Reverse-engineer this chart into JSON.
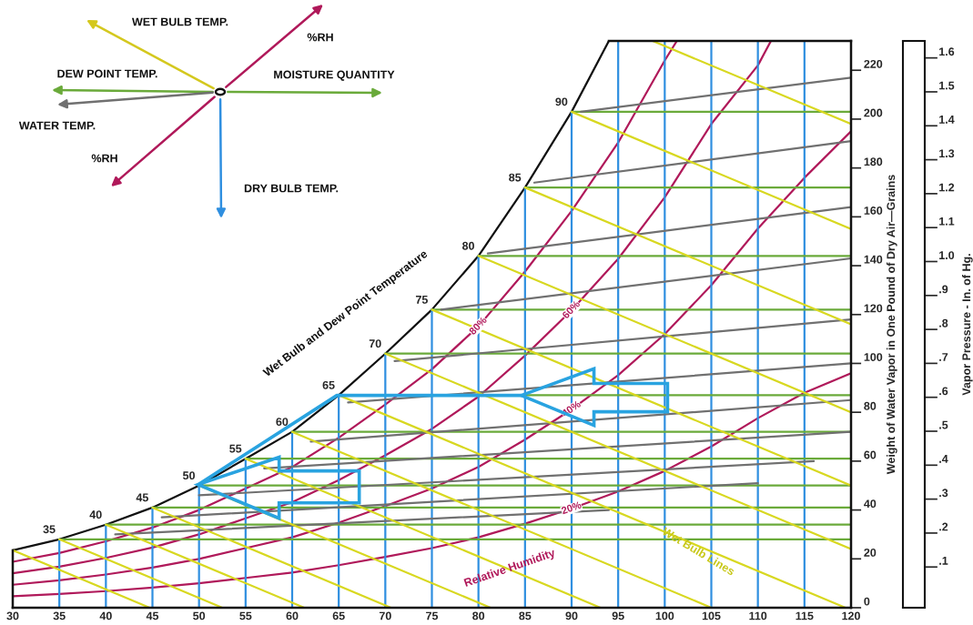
{
  "chart_data": {
    "type": "line",
    "xlim": [
      30,
      120
    ],
    "xticks": [
      30,
      35,
      40,
      45,
      50,
      55,
      60,
      65,
      70,
      75,
      80,
      85,
      90,
      95,
      100,
      105,
      110,
      115,
      120
    ],
    "ylim": [
      0,
      232
    ],
    "yticks": [
      0,
      20,
      40,
      60,
      80,
      100,
      120,
      140,
      160,
      180,
      200,
      220
    ],
    "ylabel": "Weight of Water Vapor in One Pound of Dry Air—Grains",
    "y2label": "Vapor Pressure - In. of Hg.",
    "y2lim": [
      -0.02,
      1.65
    ],
    "y2ticks": [
      {
        "value": 0.1,
        "label": ".1"
      },
      {
        "value": 0.2,
        "label": ".2"
      },
      {
        "value": 0.3,
        "label": ".3"
      },
      {
        "value": 0.4,
        "label": ".4"
      },
      {
        "value": 0.5,
        "label": ".5"
      },
      {
        "value": 0.6,
        "label": ".6"
      },
      {
        "value": 0.7,
        "label": ".7"
      },
      {
        "value": 0.8,
        "label": ".8"
      },
      {
        "value": 0.9,
        "label": ".9"
      },
      {
        "value": 1.0,
        "label": "1.0"
      },
      {
        "value": 1.1,
        "label": "1.1"
      },
      {
        "value": 1.2,
        "label": "1.2"
      },
      {
        "value": 1.3,
        "label": "1.3"
      },
      {
        "value": 1.4,
        "label": "1.4"
      },
      {
        "value": 1.5,
        "label": "1.5"
      },
      {
        "value": 1.6,
        "label": "1.6"
      }
    ],
    "grid": false,
    "series": [
      {
        "color": "#111111",
        "x": [
          30,
          35,
          40,
          45,
          50,
          55,
          60,
          65,
          70,
          75,
          80,
          85,
          90,
          94
        ],
        "values": [
          23.5,
          28,
          34,
          41,
          50,
          61,
          72,
          87,
          104,
          122,
          144,
          172,
          203,
          232
        ]
      },
      {
        "name": "80%",
        "color": "#b0195a",
        "x": [
          30,
          35,
          40,
          45,
          50,
          55,
          60,
          65,
          70,
          75,
          80,
          85,
          90,
          95,
          100,
          101.3
        ],
        "values": [
          18.8,
          22.4,
          27.2,
          32.8,
          40,
          48.8,
          57.6,
          69.6,
          83.2,
          97.6,
          115.2,
          137.6,
          162.4,
          190.4,
          224,
          232
        ]
      },
      {
        "name": "60%",
        "color": "#b0195a",
        "x": [
          30,
          35,
          40,
          45,
          50,
          55,
          60,
          65,
          70,
          75,
          80,
          85,
          90,
          95,
          100,
          105,
          110,
          111.4
        ],
        "values": [
          14.1,
          16.8,
          20.4,
          24.6,
          30,
          36.6,
          43.2,
          52.2,
          62.4,
          73.2,
          86.4,
          103.2,
          121.8,
          142.8,
          168,
          198,
          222,
          232
        ]
      },
      {
        "name": "40%",
        "color": "#b0195a",
        "x": [
          30,
          35,
          40,
          45,
          50,
          55,
          60,
          65,
          70,
          75,
          80,
          85,
          90,
          95,
          100,
          105,
          110,
          115,
          120
        ],
        "values": [
          9.4,
          11.2,
          13.6,
          16.4,
          20,
          24.4,
          28.8,
          34.8,
          41.6,
          48.8,
          57.6,
          68.8,
          81.2,
          95.2,
          112,
          132,
          155.2,
          176,
          195
        ]
      },
      {
        "name": "20%",
        "color": "#b0195a",
        "x": [
          30,
          35,
          40,
          45,
          50,
          55,
          60,
          65,
          70,
          75,
          80,
          85,
          90,
          95,
          100,
          105,
          110,
          115,
          120
        ],
        "values": [
          4.7,
          5.6,
          6.8,
          8.2,
          10,
          12.2,
          14.4,
          17.4,
          20.8,
          24.4,
          28.8,
          34.4,
          40.6,
          47.6,
          56,
          66,
          77.6,
          88,
          96
        ]
      },
      {
        "color": "#2f8fe0",
        "x": [
          35,
          35
        ],
        "values": [
          0,
          28
        ]
      },
      {
        "color": "#2f8fe0",
        "x": [
          40,
          40
        ],
        "values": [
          0,
          34
        ]
      },
      {
        "color": "#2f8fe0",
        "x": [
          45,
          45
        ],
        "values": [
          0,
          41
        ]
      },
      {
        "color": "#2f8fe0",
        "x": [
          50,
          50
        ],
        "values": [
          0,
          50
        ]
      },
      {
        "color": "#2f8fe0",
        "x": [
          55,
          55
        ],
        "values": [
          0,
          61
        ]
      },
      {
        "color": "#2f8fe0",
        "x": [
          60,
          60
        ],
        "values": [
          0,
          72
        ]
      },
      {
        "color": "#2f8fe0",
        "x": [
          65,
          65
        ],
        "values": [
          0,
          87
        ]
      },
      {
        "color": "#2f8fe0",
        "x": [
          70,
          70
        ],
        "values": [
          0,
          104
        ]
      },
      {
        "color": "#2f8fe0",
        "x": [
          75,
          75
        ],
        "values": [
          0,
          122
        ]
      },
      {
        "color": "#2f8fe0",
        "x": [
          80,
          80
        ],
        "values": [
          0,
          144
        ]
      },
      {
        "color": "#2f8fe0",
        "x": [
          85,
          85
        ],
        "values": [
          0,
          172
        ]
      },
      {
        "color": "#2f8fe0",
        "x": [
          90,
          90
        ],
        "values": [
          0,
          203
        ]
      },
      {
        "color": "#2f8fe0",
        "x": [
          95,
          95
        ],
        "values": [
          0,
          232
        ]
      },
      {
        "color": "#2f8fe0",
        "x": [
          100,
          100
        ],
        "values": [
          0,
          232
        ]
      },
      {
        "color": "#2f8fe0",
        "x": [
          105,
          105
        ],
        "values": [
          0,
          232
        ]
      },
      {
        "color": "#2f8fe0",
        "x": [
          110,
          110
        ],
        "values": [
          0,
          232
        ]
      },
      {
        "color": "#2f8fe0",
        "x": [
          115,
          115
        ],
        "values": [
          0,
          232
        ]
      },
      {
        "color": "#6aaa3a",
        "x": [
          35,
          120
        ],
        "values": [
          28,
          28
        ]
      },
      {
        "color": "#6aaa3a",
        "x": [
          40,
          120
        ],
        "values": [
          34,
          34
        ]
      },
      {
        "color": "#6aaa3a",
        "x": [
          45,
          120
        ],
        "values": [
          41,
          41
        ]
      },
      {
        "color": "#6aaa3a",
        "x": [
          50,
          120
        ],
        "values": [
          50,
          50
        ]
      },
      {
        "color": "#6aaa3a",
        "x": [
          55,
          120
        ],
        "values": [
          61,
          61
        ]
      },
      {
        "color": "#6aaa3a",
        "x": [
          60,
          120
        ],
        "values": [
          72,
          72
        ]
      },
      {
        "color": "#6aaa3a",
        "x": [
          65,
          120
        ],
        "values": [
          87,
          87
        ]
      },
      {
        "color": "#6aaa3a",
        "x": [
          70,
          120
        ],
        "values": [
          104,
          104
        ]
      },
      {
        "color": "#6aaa3a",
        "x": [
          75,
          120
        ],
        "values": [
          122,
          122
        ]
      },
      {
        "color": "#6aaa3a",
        "x": [
          80,
          120
        ],
        "values": [
          144,
          144
        ]
      },
      {
        "color": "#6aaa3a",
        "x": [
          85,
          120
        ],
        "values": [
          172,
          172
        ]
      },
      {
        "color": "#6aaa3a",
        "x": [
          90,
          120
        ],
        "values": [
          203,
          203
        ]
      },
      {
        "color": "#707070",
        "x": [
          41,
          94
        ],
        "values": [
          30,
          40
        ]
      },
      {
        "color": "#707070",
        "x": [
          46,
          110
        ],
        "values": [
          37,
          51
        ]
      },
      {
        "color": "#707070",
        "x": [
          50,
          116
        ],
        "values": [
          46,
          60
        ]
      },
      {
        "color": "#707070",
        "x": [
          57,
          120
        ],
        "values": [
          57,
          72
        ]
      },
      {
        "color": "#707070",
        "x": [
          62,
          120
        ],
        "values": [
          68,
          85
        ]
      },
      {
        "color": "#707070",
        "x": [
          66,
          120
        ],
        "values": [
          84,
          100
        ]
      },
      {
        "color": "#707070",
        "x": [
          71,
          120
        ],
        "values": [
          101,
          118
        ]
      },
      {
        "color": "#707070",
        "x": [
          76,
          120
        ],
        "values": [
          122,
          143
        ]
      },
      {
        "color": "#707070",
        "x": [
          81,
          120
        ],
        "values": [
          145,
          164
        ]
      },
      {
        "color": "#707070",
        "x": [
          86,
          120
        ],
        "values": [
          174,
          191
        ]
      },
      {
        "color": "#707070",
        "x": [
          91,
          120
        ],
        "values": [
          203,
          217
        ]
      },
      {
        "color": "#d8d820",
        "x": [
          30,
          44.7
        ],
        "values": [
          23.5,
          0
        ]
      },
      {
        "color": "#d8d820",
        "x": [
          35,
          52.5
        ],
        "values": [
          28,
          0
        ]
      },
      {
        "color": "#d8d820",
        "x": [
          40,
          61.3
        ],
        "values": [
          34,
          0
        ]
      },
      {
        "color": "#d8d820",
        "x": [
          45,
          70.6
        ],
        "values": [
          41,
          0
        ]
      },
      {
        "color": "#d8d820",
        "x": [
          50,
          81.3
        ],
        "values": [
          50,
          0
        ]
      },
      {
        "color": "#d8d820",
        "x": [
          55,
          93.1
        ],
        "values": [
          61,
          0
        ]
      },
      {
        "color": "#d8d820",
        "x": [
          60,
          105
        ],
        "values": [
          72,
          0
        ]
      },
      {
        "color": "#d8d820",
        "x": [
          65,
          119.4
        ],
        "values": [
          87,
          0
        ]
      },
      {
        "color": "#d8d820",
        "x": [
          70,
          120
        ],
        "values": [
          104,
          24
        ]
      },
      {
        "color": "#d8d820",
        "x": [
          75,
          120
        ],
        "values": [
          122,
          50
        ]
      },
      {
        "color": "#d8d820",
        "x": [
          80,
          120
        ],
        "values": [
          144,
          80
        ]
      },
      {
        "color": "#d8d820",
        "x": [
          85,
          120
        ],
        "values": [
          172,
          116
        ]
      },
      {
        "color": "#d8d820",
        "x": [
          90,
          120
        ],
        "values": [
          203,
          155
        ]
      },
      {
        "color": "#d8d820",
        "x": [
          98.7,
          120
        ],
        "values": [
          232,
          198
        ]
      }
    ],
    "annotations": [
      {
        "text": "35",
        "x": 35,
        "y": 28
      },
      {
        "text": "40",
        "x": 40,
        "y": 34
      },
      {
        "text": "45",
        "x": 45,
        "y": 41
      },
      {
        "text": "50",
        "x": 50,
        "y": 50
      },
      {
        "text": "55",
        "x": 55,
        "y": 61
      },
      {
        "text": "60",
        "x": 60,
        "y": 72
      },
      {
        "text": "65",
        "x": 65,
        "y": 87
      },
      {
        "text": "70",
        "x": 70,
        "y": 104
      },
      {
        "text": "75",
        "x": 75,
        "y": 122
      },
      {
        "text": "80",
        "x": 80,
        "y": 144
      },
      {
        "text": "85",
        "x": 85,
        "y": 172
      },
      {
        "text": "90",
        "x": 90,
        "y": 203
      },
      "Wet Bulb and Dew Point Temperature",
      "Relative Humidity",
      "Wet Bulb Lines",
      "WET BULB TEMP.",
      "%RH",
      "DEW POINT TEMP.",
      "MOISTURE QUANTITY",
      "WATER TEMP.",
      "%RH",
      "DRY BULB TEMP."
    ]
  }
}
